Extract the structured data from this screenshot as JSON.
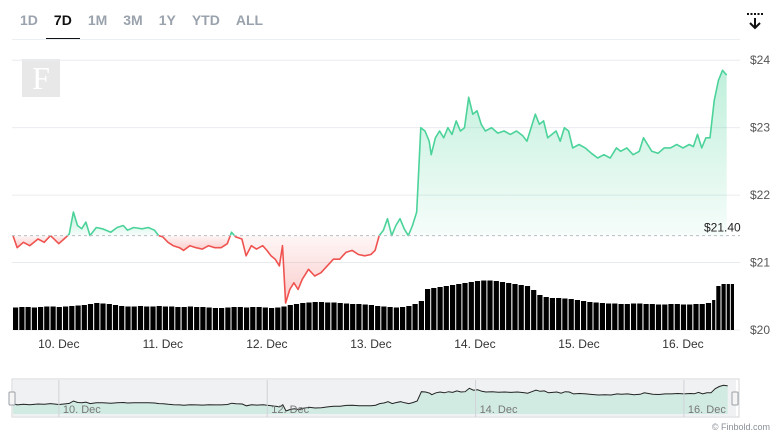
{
  "tabs": [
    {
      "label": "1D",
      "active": false
    },
    {
      "label": "7D",
      "active": true
    },
    {
      "label": "1M",
      "active": false
    },
    {
      "label": "3M",
      "active": false
    },
    {
      "label": "1Y",
      "active": false
    },
    {
      "label": "YTD",
      "active": false
    },
    {
      "label": "ALL",
      "active": false
    }
  ],
  "logo_letter": "F",
  "credit": "© Finbold.com",
  "colors": {
    "up": "#4bd39a",
    "down": "#ef5350",
    "volume": "#000000",
    "grid": "#e9ecef"
  },
  "chart_data": {
    "type": "area",
    "price_label": "$21.40",
    "baseline": 21.4,
    "ylim": [
      20,
      24.3
    ],
    "yticks": [
      {
        "value": 20,
        "label": "$20"
      },
      {
        "value": 21,
        "label": "$21"
      },
      {
        "value": 22,
        "label": "$22"
      },
      {
        "value": 23,
        "label": "$23"
      },
      {
        "value": 24,
        "label": "$24"
      }
    ],
    "xlim": [
      9.55,
      16.5
    ],
    "xticks": [
      {
        "value": 10,
        "label": "10. Dec"
      },
      {
        "value": 11,
        "label": "11. Dec"
      },
      {
        "value": 12,
        "label": "12. Dec"
      },
      {
        "value": 13,
        "label": "13. Dec"
      },
      {
        "value": 14,
        "label": "14. Dec"
      },
      {
        "value": 15,
        "label": "15. Dec"
      },
      {
        "value": 16,
        "label": "16. Dec"
      }
    ],
    "navigator_xticks": [
      {
        "value": 10,
        "label": "10. Dec"
      },
      {
        "value": 12,
        "label": "12. Dec"
      },
      {
        "value": 14,
        "label": "14. Dec"
      },
      {
        "value": 16,
        "label": "16. Dec"
      }
    ],
    "price": [
      [
        9.56,
        21.4
      ],
      [
        9.6,
        21.22
      ],
      [
        9.66,
        21.3
      ],
      [
        9.72,
        21.25
      ],
      [
        9.8,
        21.35
      ],
      [
        9.86,
        21.3
      ],
      [
        9.92,
        21.4
      ],
      [
        10.0,
        21.28
      ],
      [
        10.05,
        21.35
      ],
      [
        10.1,
        21.42
      ],
      [
        10.14,
        21.75
      ],
      [
        10.18,
        21.55
      ],
      [
        10.22,
        21.5
      ],
      [
        10.26,
        21.6
      ],
      [
        10.3,
        21.4
      ],
      [
        10.36,
        21.52
      ],
      [
        10.42,
        21.5
      ],
      [
        10.5,
        21.45
      ],
      [
        10.56,
        21.52
      ],
      [
        10.62,
        21.55
      ],
      [
        10.66,
        21.48
      ],
      [
        10.72,
        21.52
      ],
      [
        10.8,
        21.5
      ],
      [
        10.86,
        21.52
      ],
      [
        10.92,
        21.48
      ],
      [
        10.96,
        21.4
      ],
      [
        11.0,
        21.38
      ],
      [
        11.05,
        21.3
      ],
      [
        11.1,
        21.25
      ],
      [
        11.16,
        21.22
      ],
      [
        11.2,
        21.18
      ],
      [
        11.26,
        21.25
      ],
      [
        11.32,
        21.22
      ],
      [
        11.38,
        21.2
      ],
      [
        11.44,
        21.25
      ],
      [
        11.5,
        21.22
      ],
      [
        11.56,
        21.22
      ],
      [
        11.62,
        21.28
      ],
      [
        11.66,
        21.45
      ],
      [
        11.7,
        21.38
      ],
      [
        11.76,
        21.35
      ],
      [
        11.8,
        21.1
      ],
      [
        11.85,
        21.25
      ],
      [
        11.9,
        21.2
      ],
      [
        11.96,
        21.25
      ],
      [
        12.0,
        21.18
      ],
      [
        12.04,
        21.1
      ],
      [
        12.08,
        21.05
      ],
      [
        12.12,
        20.95
      ],
      [
        12.15,
        21.25
      ],
      [
        12.18,
        20.4
      ],
      [
        12.22,
        20.6
      ],
      [
        12.26,
        20.7
      ],
      [
        12.3,
        20.6
      ],
      [
        12.34,
        20.75
      ],
      [
        12.4,
        20.9
      ],
      [
        12.46,
        20.8
      ],
      [
        12.52,
        20.85
      ],
      [
        12.58,
        20.95
      ],
      [
        12.64,
        21.05
      ],
      [
        12.7,
        21.05
      ],
      [
        12.76,
        21.15
      ],
      [
        12.82,
        21.18
      ],
      [
        12.88,
        21.12
      ],
      [
        12.94,
        21.1
      ],
      [
        13.0,
        21.12
      ],
      [
        13.04,
        21.18
      ],
      [
        13.08,
        21.4
      ],
      [
        13.12,
        21.48
      ],
      [
        13.16,
        21.65
      ],
      [
        13.2,
        21.4
      ],
      [
        13.24,
        21.55
      ],
      [
        13.28,
        21.65
      ],
      [
        13.32,
        21.5
      ],
      [
        13.36,
        21.4
      ],
      [
        13.4,
        21.55
      ],
      [
        13.44,
        21.75
      ],
      [
        13.48,
        23.0
      ],
      [
        13.52,
        22.95
      ],
      [
        13.56,
        22.8
      ],
      [
        13.58,
        22.6
      ],
      [
        13.62,
        22.85
      ],
      [
        13.66,
        22.95
      ],
      [
        13.7,
        22.85
      ],
      [
        13.74,
        23.0
      ],
      [
        13.78,
        22.9
      ],
      [
        13.82,
        23.1
      ],
      [
        13.86,
        22.95
      ],
      [
        13.9,
        23.0
      ],
      [
        13.94,
        23.45
      ],
      [
        13.98,
        23.2
      ],
      [
        14.02,
        23.25
      ],
      [
        14.06,
        23.05
      ],
      [
        14.1,
        22.95
      ],
      [
        14.16,
        23.0
      ],
      [
        14.22,
        22.92
      ],
      [
        14.28,
        22.95
      ],
      [
        14.34,
        22.9
      ],
      [
        14.4,
        22.95
      ],
      [
        14.46,
        22.88
      ],
      [
        14.5,
        22.8
      ],
      [
        14.54,
        23.0
      ],
      [
        14.58,
        23.2
      ],
      [
        14.62,
        23.05
      ],
      [
        14.66,
        23.1
      ],
      [
        14.7,
        22.85
      ],
      [
        14.74,
        22.9
      ],
      [
        14.78,
        22.95
      ],
      [
        14.82,
        22.8
      ],
      [
        14.86,
        23.0
      ],
      [
        14.9,
        22.95
      ],
      [
        14.94,
        22.7
      ],
      [
        15.0,
        22.75
      ],
      [
        15.06,
        22.7
      ],
      [
        15.12,
        22.62
      ],
      [
        15.18,
        22.55
      ],
      [
        15.24,
        22.6
      ],
      [
        15.3,
        22.55
      ],
      [
        15.36,
        22.7
      ],
      [
        15.4,
        22.65
      ],
      [
        15.46,
        22.7
      ],
      [
        15.52,
        22.6
      ],
      [
        15.58,
        22.65
      ],
      [
        15.62,
        22.85
      ],
      [
        15.66,
        22.75
      ],
      [
        15.7,
        22.65
      ],
      [
        15.76,
        22.62
      ],
      [
        15.82,
        22.7
      ],
      [
        15.88,
        22.7
      ],
      [
        15.94,
        22.75
      ],
      [
        16.0,
        22.7
      ],
      [
        16.06,
        22.75
      ],
      [
        16.1,
        22.72
      ],
      [
        16.14,
        22.9
      ],
      [
        16.18,
        22.7
      ],
      [
        16.22,
        22.85
      ],
      [
        16.26,
        22.85
      ],
      [
        16.3,
        23.4
      ],
      [
        16.34,
        23.7
      ],
      [
        16.38,
        23.85
      ],
      [
        16.42,
        23.78
      ]
    ],
    "volume": [
      [
        9.56,
        0.45
      ],
      [
        9.62,
        0.46
      ],
      [
        9.68,
        0.46
      ],
      [
        9.74,
        0.45
      ],
      [
        9.8,
        0.46
      ],
      [
        9.86,
        0.47
      ],
      [
        9.92,
        0.47
      ],
      [
        9.98,
        0.46
      ],
      [
        10.04,
        0.47
      ],
      [
        10.1,
        0.48
      ],
      [
        10.16,
        0.49
      ],
      [
        10.22,
        0.5
      ],
      [
        10.28,
        0.52
      ],
      [
        10.34,
        0.54
      ],
      [
        10.4,
        0.53
      ],
      [
        10.46,
        0.52
      ],
      [
        10.52,
        0.5
      ],
      [
        10.58,
        0.48
      ],
      [
        10.64,
        0.47
      ],
      [
        10.7,
        0.47
      ],
      [
        10.76,
        0.48
      ],
      [
        10.82,
        0.47
      ],
      [
        10.88,
        0.47
      ],
      [
        10.94,
        0.48
      ],
      [
        11.0,
        0.47
      ],
      [
        11.06,
        0.47
      ],
      [
        11.12,
        0.46
      ],
      [
        11.18,
        0.46
      ],
      [
        11.24,
        0.47
      ],
      [
        11.3,
        0.46
      ],
      [
        11.36,
        0.46
      ],
      [
        11.42,
        0.45
      ],
      [
        11.48,
        0.44
      ],
      [
        11.54,
        0.44
      ],
      [
        11.6,
        0.45
      ],
      [
        11.66,
        0.46
      ],
      [
        11.72,
        0.46
      ],
      [
        11.78,
        0.45
      ],
      [
        11.84,
        0.46
      ],
      [
        11.9,
        0.46
      ],
      [
        11.96,
        0.45
      ],
      [
        12.02,
        0.44
      ],
      [
        12.08,
        0.45
      ],
      [
        12.14,
        0.47
      ],
      [
        12.2,
        0.5
      ],
      [
        12.26,
        0.52
      ],
      [
        12.32,
        0.54
      ],
      [
        12.38,
        0.55
      ],
      [
        12.44,
        0.56
      ],
      [
        12.5,
        0.56
      ],
      [
        12.56,
        0.55
      ],
      [
        12.62,
        0.55
      ],
      [
        12.68,
        0.54
      ],
      [
        12.74,
        0.53
      ],
      [
        12.8,
        0.52
      ],
      [
        12.86,
        0.52
      ],
      [
        12.92,
        0.51
      ],
      [
        12.98,
        0.5
      ],
      [
        13.04,
        0.48
      ],
      [
        13.1,
        0.47
      ],
      [
        13.16,
        0.46
      ],
      [
        13.22,
        0.45
      ],
      [
        13.28,
        0.46
      ],
      [
        13.34,
        0.48
      ],
      [
        13.4,
        0.52
      ],
      [
        13.46,
        0.58
      ],
      [
        13.52,
        0.82
      ],
      [
        13.58,
        0.84
      ],
      [
        13.64,
        0.86
      ],
      [
        13.7,
        0.88
      ],
      [
        13.76,
        0.9
      ],
      [
        13.82,
        0.92
      ],
      [
        13.88,
        0.94
      ],
      [
        13.94,
        0.96
      ],
      [
        14.0,
        0.98
      ],
      [
        14.06,
        0.99
      ],
      [
        14.12,
        0.99
      ],
      [
        14.18,
        0.98
      ],
      [
        14.24,
        0.96
      ],
      [
        14.3,
        0.94
      ],
      [
        14.36,
        0.92
      ],
      [
        14.42,
        0.9
      ],
      [
        14.48,
        0.88
      ],
      [
        14.54,
        0.8
      ],
      [
        14.6,
        0.7
      ],
      [
        14.66,
        0.66
      ],
      [
        14.72,
        0.64
      ],
      [
        14.78,
        0.64
      ],
      [
        14.84,
        0.63
      ],
      [
        14.9,
        0.62
      ],
      [
        14.96,
        0.6
      ],
      [
        15.02,
        0.58
      ],
      [
        15.08,
        0.56
      ],
      [
        15.14,
        0.55
      ],
      [
        15.2,
        0.54
      ],
      [
        15.26,
        0.53
      ],
      [
        15.32,
        0.53
      ],
      [
        15.38,
        0.52
      ],
      [
        15.44,
        0.52
      ],
      [
        15.5,
        0.53
      ],
      [
        15.56,
        0.53
      ],
      [
        15.62,
        0.52
      ],
      [
        15.68,
        0.52
      ],
      [
        15.74,
        0.51
      ],
      [
        15.8,
        0.51
      ],
      [
        15.86,
        0.52
      ],
      [
        15.92,
        0.52
      ],
      [
        15.98,
        0.51
      ],
      [
        16.04,
        0.51
      ],
      [
        16.1,
        0.52
      ],
      [
        16.16,
        0.52
      ],
      [
        16.22,
        0.54
      ],
      [
        16.28,
        0.6
      ],
      [
        16.32,
        0.88
      ],
      [
        16.37,
        0.92
      ],
      [
        16.42,
        0.92
      ],
      [
        16.46,
        0.92
      ]
    ]
  }
}
